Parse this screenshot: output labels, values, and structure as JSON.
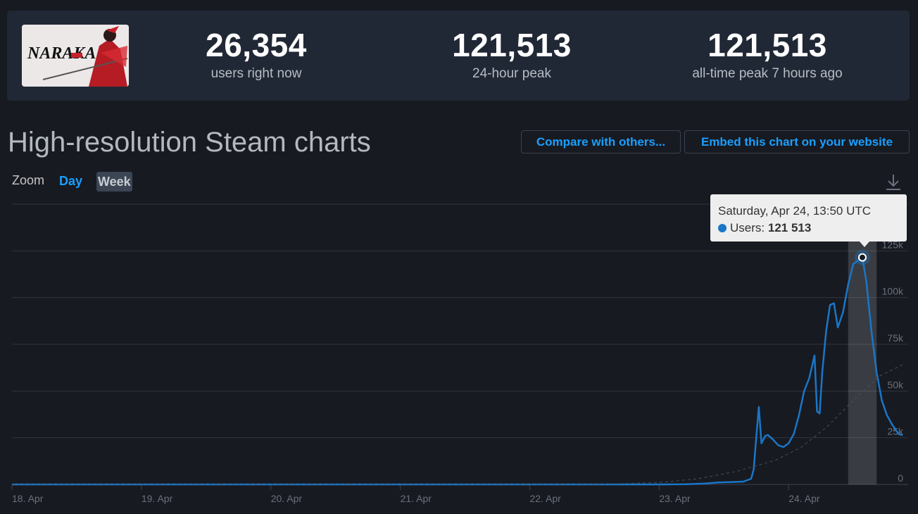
{
  "stats": {
    "current": {
      "value": "26,354",
      "label": "users right now"
    },
    "peak24": {
      "value": "121,513",
      "label": "24-hour peak"
    },
    "alltime": {
      "value": "121,513",
      "label": "all-time peak 7 hours ago"
    }
  },
  "game_logo_text": "NARAKA",
  "title": "High-resolution Steam charts",
  "buttons": {
    "compare": "Compare with others...",
    "embed": "Embed this chart on your website"
  },
  "zoom": {
    "label": "Zoom",
    "day": "Day",
    "week": "Week"
  },
  "colors": {
    "accent": "#1a9fff",
    "series": "#1a76c7",
    "background": "#171a21",
    "panel": "#212835"
  },
  "icons": {
    "download": "download-icon"
  },
  "tooltip": {
    "date": "Saturday, Apr 24, 13:50 UTC",
    "series": "Users",
    "value": "121 513"
  },
  "chart_data": {
    "type": "line",
    "title": "",
    "xlabel": "",
    "ylabel": "",
    "x_ticks": [
      "18. Apr",
      "19. Apr",
      "20. Apr",
      "21. Apr",
      "22. Apr",
      "23. Apr",
      "24. Apr"
    ],
    "y_ticks": [
      "0",
      "25k",
      "50k",
      "75k",
      "100k",
      "125k"
    ],
    "ylim": [
      0,
      150000
    ],
    "x_range_days": [
      18.0,
      24.88
    ],
    "grid": true,
    "legend": "none",
    "series": [
      {
        "name": "Users",
        "points": [
          [
            18.0,
            0
          ],
          [
            19.0,
            0
          ],
          [
            20.0,
            0
          ],
          [
            21.0,
            0
          ],
          [
            22.0,
            0
          ],
          [
            23.0,
            0
          ],
          [
            23.2,
            100
          ],
          [
            23.35,
            500
          ],
          [
            23.45,
            1000
          ],
          [
            23.55,
            1200
          ],
          [
            23.65,
            1500
          ],
          [
            23.71,
            3000
          ],
          [
            23.73,
            8000
          ],
          [
            23.75,
            25000
          ],
          [
            23.77,
            41500
          ],
          [
            23.79,
            22000
          ],
          [
            23.82,
            26000
          ],
          [
            23.84,
            26500
          ],
          [
            23.88,
            24000
          ],
          [
            23.92,
            21000
          ],
          [
            23.96,
            20000
          ],
          [
            24.0,
            22000
          ],
          [
            24.04,
            27000
          ],
          [
            24.08,
            37000
          ],
          [
            24.12,
            50000
          ],
          [
            24.16,
            57000
          ],
          [
            24.2,
            69000
          ],
          [
            24.22,
            39000
          ],
          [
            24.24,
            38000
          ],
          [
            24.26,
            60000
          ],
          [
            24.29,
            82000
          ],
          [
            24.32,
            96000
          ],
          [
            24.35,
            97000
          ],
          [
            24.38,
            84000
          ],
          [
            24.42,
            92000
          ],
          [
            24.46,
            107000
          ],
          [
            24.5,
            118000
          ],
          [
            24.57,
            121513
          ],
          [
            24.6,
            109000
          ],
          [
            24.64,
            82000
          ],
          [
            24.68,
            60000
          ],
          [
            24.72,
            45000
          ],
          [
            24.76,
            37000
          ],
          [
            24.8,
            32000
          ],
          [
            24.85,
            27000
          ],
          [
            24.88,
            26354
          ]
        ]
      },
      {
        "name": "",
        "style": "dashed",
        "points": [
          [
            18.0,
            0
          ],
          [
            22.5,
            0
          ],
          [
            23.0,
            1000
          ],
          [
            23.3,
            3000
          ],
          [
            23.6,
            7000
          ],
          [
            23.9,
            13000
          ],
          [
            24.1,
            20000
          ],
          [
            24.3,
            31000
          ],
          [
            24.5,
            45000
          ],
          [
            24.7,
            58000
          ],
          [
            24.88,
            64000
          ]
        ]
      }
    ],
    "highlight": {
      "x": 24.57,
      "band": [
        24.46,
        24.68
      ]
    }
  }
}
